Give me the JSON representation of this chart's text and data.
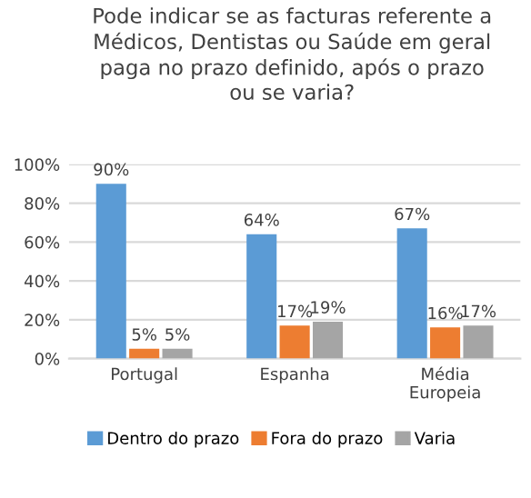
{
  "chart_data": {
    "type": "bar",
    "title": "Pode indicar se as facturas referente a\nMédicos, Dentistas ou Saúde em geral\npaga no prazo definido, após o prazo\nou se varia?",
    "categories": [
      "Portugal",
      "Espanha",
      "Média\nEuropeia"
    ],
    "series": [
      {
        "name": "Dentro do prazo",
        "color": "#5b9bd5",
        "values": [
          90,
          64,
          67
        ],
        "value_labels": [
          "90%",
          "64%",
          "67%"
        ]
      },
      {
        "name": "Fora do prazo",
        "color": "#ed7d31",
        "values": [
          5,
          17,
          16
        ],
        "value_labels": [
          "5%",
          "17%",
          "16%"
        ]
      },
      {
        "name": "Varia",
        "color": "#a5a5a5",
        "values": [
          5,
          19,
          17
        ],
        "value_labels": [
          "5%",
          "19%",
          "17%"
        ]
      }
    ],
    "ylim": [
      0,
      100
    ],
    "yticks": [
      {
        "value": 0,
        "label": "0%"
      },
      {
        "value": 20,
        "label": "20%"
      },
      {
        "value": 40,
        "label": "40%"
      },
      {
        "value": 60,
        "label": "60%"
      },
      {
        "value": 80,
        "label": "80%"
      },
      {
        "value": 100,
        "label": "100%"
      }
    ],
    "grid": "y",
    "legend": "bottom"
  }
}
